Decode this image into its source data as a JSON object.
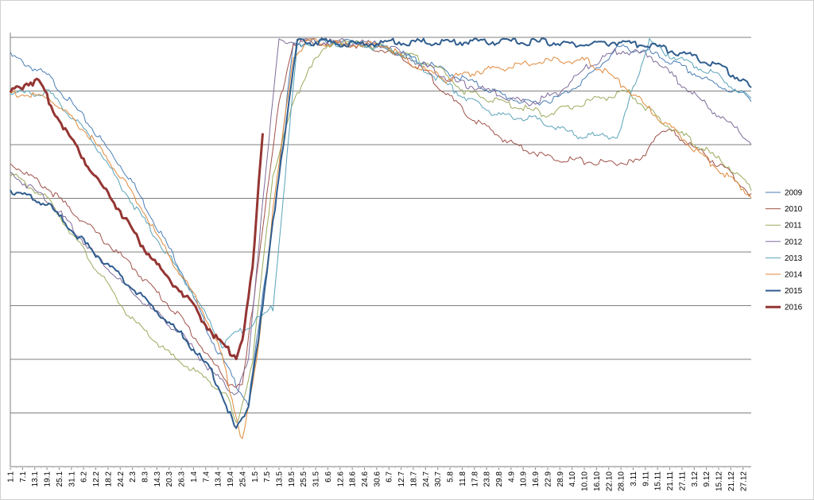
{
  "chart_data": {
    "type": "line",
    "title": "",
    "xlabel": "",
    "ylabel": "",
    "ylim": [
      0,
      8
    ],
    "y_ticks_labeled": false,
    "grid": "horizontal",
    "legend_position": "right",
    "x_tick_labels": [
      "1.1",
      "7.1",
      "13.1",
      "19.1",
      "25.1",
      "31.1",
      "6.2",
      "12.2",
      "18.2",
      "24.2",
      "2.3",
      "8.3",
      "14.3",
      "20.3",
      "26.3",
      "1.4",
      "7.4",
      "13.4",
      "19.4",
      "25.4",
      "1.5",
      "7.5",
      "13.5",
      "19.5",
      "25.5",
      "31.5",
      "6.6",
      "12.6",
      "18.6",
      "24.6",
      "30.6",
      "6.7",
      "12.7",
      "18.7",
      "24.7",
      "30.7",
      "5.8",
      "11.8",
      "17.8",
      "23.8",
      "29.8",
      "4.9",
      "10.9",
      "16.9",
      "22.9",
      "28.9",
      "4.10",
      "10.10",
      "16.10",
      "22.10",
      "28.10",
      "3.11",
      "9.11",
      "15.11",
      "21.11",
      "27.11",
      "3.12",
      "9.12",
      "15.12",
      "21.12",
      "27.12"
    ],
    "series": [
      {
        "name": "2009",
        "color": "#4a7eb5",
        "width": 1,
        "points": [
          [
            1,
            7.7
          ],
          [
            20,
            7.3
          ],
          [
            40,
            6.4
          ],
          [
            60,
            5.4
          ],
          [
            85,
            3.7
          ],
          [
            100,
            2.4
          ],
          [
            110,
            1.7
          ],
          [
            118,
            1.2
          ],
          [
            125,
            3.2
          ],
          [
            132,
            5.2
          ],
          [
            140,
            7.9
          ],
          [
            150,
            7.95
          ],
          [
            165,
            7.95
          ],
          [
            180,
            7.9
          ],
          [
            195,
            7.7
          ],
          [
            215,
            7.4
          ],
          [
            240,
            7.0
          ],
          [
            255,
            6.8
          ],
          [
            270,
            6.9
          ],
          [
            285,
            7.3
          ],
          [
            300,
            7.85
          ],
          [
            315,
            7.75
          ],
          [
            330,
            7.5
          ],
          [
            345,
            7.2
          ],
          [
            365,
            6.9
          ]
        ]
      },
      {
        "name": "2010",
        "color": "#a0524a",
        "width": 1,
        "points": [
          [
            1,
            5.7
          ],
          [
            20,
            5.2
          ],
          [
            40,
            4.5
          ],
          [
            60,
            3.8
          ],
          [
            85,
            2.8
          ],
          [
            100,
            2.0
          ],
          [
            108,
            1.6
          ],
          [
            115,
            1.5
          ],
          [
            125,
            4.5
          ],
          [
            133,
            6.8
          ],
          [
            140,
            7.95
          ],
          [
            150,
            7.95
          ],
          [
            170,
            7.9
          ],
          [
            185,
            7.8
          ],
          [
            205,
            7.4
          ],
          [
            225,
            6.6
          ],
          [
            245,
            6.1
          ],
          [
            265,
            5.8
          ],
          [
            290,
            5.7
          ],
          [
            300,
            5.7
          ],
          [
            310,
            5.7
          ],
          [
            318,
            6.2
          ],
          [
            325,
            6.3
          ],
          [
            340,
            5.9
          ],
          [
            355,
            5.5
          ],
          [
            365,
            5.1
          ]
        ]
      },
      {
        "name": "2011",
        "color": "#9aaa5c",
        "width": 1,
        "points": [
          [
            1,
            5.5
          ],
          [
            20,
            5.0
          ],
          [
            40,
            3.9
          ],
          [
            60,
            2.8
          ],
          [
            80,
            2.1
          ],
          [
            100,
            1.6
          ],
          [
            108,
            1.3
          ],
          [
            112,
            0.8
          ],
          [
            120,
            2.0
          ],
          [
            130,
            5.5
          ],
          [
            140,
            6.8
          ],
          [
            148,
            7.5
          ],
          [
            160,
            7.95
          ],
          [
            175,
            7.9
          ],
          [
            190,
            7.8
          ],
          [
            210,
            7.5
          ],
          [
            225,
            7.0
          ],
          [
            245,
            6.8
          ],
          [
            265,
            6.6
          ],
          [
            290,
            6.9
          ],
          [
            305,
            7.0
          ],
          [
            320,
            6.5
          ],
          [
            340,
            6.0
          ],
          [
            355,
            5.6
          ],
          [
            365,
            5.2
          ]
        ]
      },
      {
        "name": "2012",
        "color": "#7f6c9a",
        "width": 1,
        "points": [
          [
            1,
            5.5
          ],
          [
            20,
            5.0
          ],
          [
            40,
            4.1
          ],
          [
            60,
            3.3
          ],
          [
            85,
            2.5
          ],
          [
            100,
            1.8
          ],
          [
            108,
            1.5
          ],
          [
            112,
            1.4
          ],
          [
            118,
            2.0
          ],
          [
            125,
            5.0
          ],
          [
            133,
            7.95
          ],
          [
            145,
            7.95
          ],
          [
            165,
            7.95
          ],
          [
            185,
            7.9
          ],
          [
            200,
            7.6
          ],
          [
            220,
            7.2
          ],
          [
            240,
            7.0
          ],
          [
            255,
            6.8
          ],
          [
            270,
            7.0
          ],
          [
            285,
            7.5
          ],
          [
            300,
            7.8
          ],
          [
            315,
            7.7
          ],
          [
            330,
            7.2
          ],
          [
            345,
            6.7
          ],
          [
            365,
            6.1
          ]
        ]
      },
      {
        "name": "2013",
        "color": "#5aa3b8",
        "width": 1,
        "points": [
          [
            1,
            7.0
          ],
          [
            20,
            7.0
          ],
          [
            40,
            6.2
          ],
          [
            60,
            5.0
          ],
          [
            80,
            3.9
          ],
          [
            95,
            3.0
          ],
          [
            105,
            2.3
          ],
          [
            112,
            2.5
          ],
          [
            120,
            2.7
          ],
          [
            130,
            3.0
          ],
          [
            135,
            5.0
          ],
          [
            142,
            7.9
          ],
          [
            155,
            7.95
          ],
          [
            170,
            7.9
          ],
          [
            190,
            7.8
          ],
          [
            210,
            7.3
          ],
          [
            225,
            6.9
          ],
          [
            240,
            6.6
          ],
          [
            260,
            6.5
          ],
          [
            280,
            6.2
          ],
          [
            300,
            6.2
          ],
          [
            308,
            7.2
          ],
          [
            315,
            7.95
          ],
          [
            325,
            7.7
          ],
          [
            345,
            7.4
          ],
          [
            365,
            6.9
          ]
        ]
      },
      {
        "name": "2014",
        "color": "#e08a3c",
        "width": 1,
        "points": [
          [
            1,
            7.0
          ],
          [
            20,
            6.9
          ],
          [
            40,
            6.2
          ],
          [
            60,
            5.2
          ],
          [
            80,
            3.9
          ],
          [
            95,
            3.0
          ],
          [
            105,
            2.1
          ],
          [
            115,
            0.5
          ],
          [
            122,
            2.0
          ],
          [
            130,
            4.8
          ],
          [
            140,
            7.7
          ],
          [
            148,
            7.95
          ],
          [
            165,
            7.9
          ],
          [
            185,
            7.9
          ],
          [
            200,
            7.5
          ],
          [
            215,
            7.25
          ],
          [
            230,
            7.4
          ],
          [
            250,
            7.5
          ],
          [
            265,
            7.6
          ],
          [
            285,
            7.6
          ],
          [
            300,
            7.2
          ],
          [
            315,
            6.7
          ],
          [
            330,
            6.2
          ],
          [
            345,
            5.7
          ],
          [
            365,
            5.1
          ]
        ]
      },
      {
        "name": "2015",
        "color": "#2f5d8e",
        "width": 2,
        "points": [
          [
            1,
            5.2
          ],
          [
            20,
            4.9
          ],
          [
            40,
            4.1
          ],
          [
            60,
            3.4
          ],
          [
            85,
            2.5
          ],
          [
            100,
            1.8
          ],
          [
            108,
            1.1
          ],
          [
            112,
            0.7
          ],
          [
            118,
            1.2
          ],
          [
            125,
            3.0
          ],
          [
            133,
            5.5
          ],
          [
            142,
            7.95
          ],
          [
            155,
            7.95
          ],
          [
            170,
            7.9
          ],
          [
            190,
            7.95
          ],
          [
            210,
            7.95
          ],
          [
            230,
            7.95
          ],
          [
            250,
            7.95
          ],
          [
            265,
            7.95
          ],
          [
            280,
            7.9
          ],
          [
            300,
            7.95
          ],
          [
            320,
            7.85
          ],
          [
            335,
            7.7
          ],
          [
            350,
            7.5
          ],
          [
            365,
            7.1
          ]
        ]
      },
      {
        "name": "2016",
        "color": "#943634",
        "width": 3,
        "points": [
          [
            1,
            7.0
          ],
          [
            10,
            7.2
          ],
          [
            15,
            7.2
          ],
          [
            25,
            6.5
          ],
          [
            40,
            5.6
          ],
          [
            55,
            4.8
          ],
          [
            65,
            4.2
          ],
          [
            75,
            3.7
          ],
          [
            85,
            3.3
          ],
          [
            95,
            2.8
          ],
          [
            105,
            2.3
          ],
          [
            112,
            2.1
          ],
          [
            115,
            2.4
          ],
          [
            120,
            3.7
          ],
          [
            125,
            6.3
          ]
        ]
      }
    ]
  }
}
